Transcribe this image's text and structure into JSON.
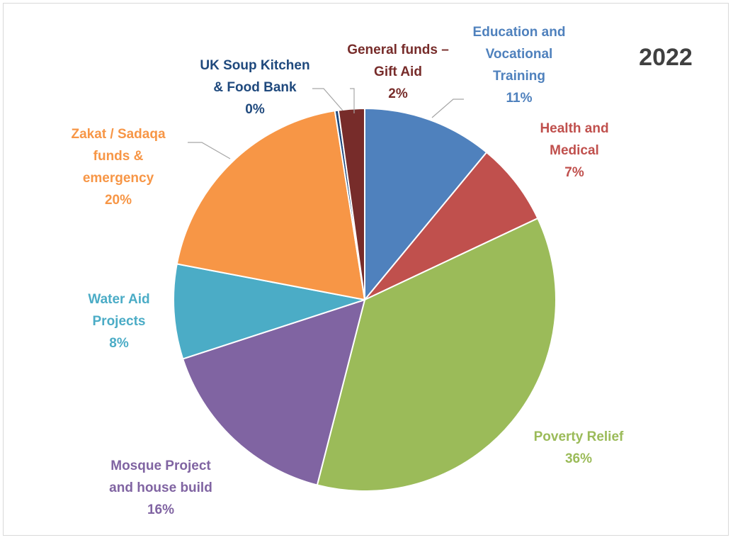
{
  "chart_data": {
    "type": "pie",
    "title": "2022",
    "slices": [
      {
        "label": "Education and Vocational Training",
        "label_lines": [
          "Education and",
          "Vocational",
          "Training"
        ],
        "percent_label": "11%",
        "value": 11,
        "color": "#4f81bd",
        "label_color": "#4f81bd"
      },
      {
        "label": "Health and Medical",
        "label_lines": [
          "Health and",
          "Medical"
        ],
        "percent_label": "7%",
        "value": 7,
        "color": "#c0504d",
        "label_color": "#c0504d"
      },
      {
        "label": "Poverty Relief",
        "label_lines": [
          "Poverty Relief"
        ],
        "percent_label": "36%",
        "value": 36,
        "color": "#9bbb59",
        "label_color": "#9bbb59"
      },
      {
        "label": "Mosque Project and house build",
        "label_lines": [
          "Mosque Project",
          "and house build"
        ],
        "percent_label": "16%",
        "value": 16,
        "color": "#8064a2",
        "label_color": "#8064a2"
      },
      {
        "label": "Water Aid Projects",
        "label_lines": [
          "Water Aid",
          "Projects"
        ],
        "percent_label": "8%",
        "value": 8,
        "color": "#4bacc6",
        "label_color": "#4bacc6"
      },
      {
        "label": "Zakat / Sadaqa funds & emergency",
        "label_lines": [
          "Zakat  / Sadaqa",
          "funds &",
          "emergency"
        ],
        "percent_label": "20%",
        "value": 19.5,
        "color": "#f79646",
        "label_color": "#f79646"
      },
      {
        "label": "UK Soup Kitchen & Food Bank",
        "label_lines": [
          "UK Soup Kitchen",
          "& Food Bank"
        ],
        "percent_label": "0%",
        "value": 0.3,
        "color": "#1f497d",
        "label_color": "#1f497d"
      },
      {
        "label": "General funds – Gift Aid",
        "label_lines": [
          "General funds –",
          "Gift Aid"
        ],
        "percent_label": "2%",
        "value": 2.2,
        "color": "#772c2a",
        "label_color": "#772c2a"
      }
    ],
    "start_angle_deg": 0,
    "direction": "clockwise",
    "legend": "none",
    "data_labels": "outside"
  }
}
